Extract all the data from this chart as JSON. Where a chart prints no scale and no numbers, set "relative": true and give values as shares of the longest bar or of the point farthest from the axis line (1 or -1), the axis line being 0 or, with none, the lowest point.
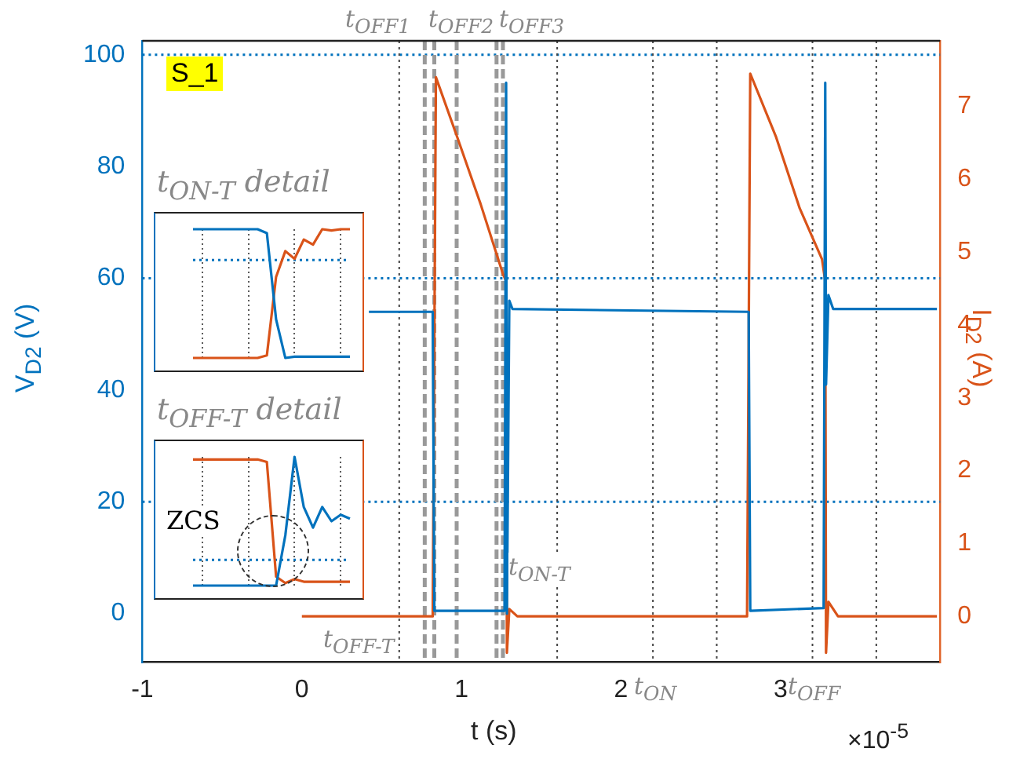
{
  "chart_data": [
    {
      "type": "line",
      "xlabel": "t (s)",
      "ylabel": "V$_{D2}$ (V)",
      "y2label": "I$_{D2}$ (A)",
      "legend": false,
      "grid": false,
      "marker": "none",
      "line_style": "solid",
      "xlim": [
        -1,
        4
      ],
      "xticks": [
        -1,
        0,
        1,
        2,
        3
      ],
      "ylim": [
        -8.7,
        102.5
      ],
      "yticks": [
        0,
        20,
        40,
        60,
        80,
        100
      ],
      "y2lim": [
        -0.63,
        7.9
      ],
      "y2ticks": [
        0,
        1,
        2,
        3,
        4,
        5,
        6,
        7
      ],
      "series": [
        {
          "color": "#0072bd",
          "x": [
            0.42,
            0.82,
            0.83,
            1.27,
            1.28,
            1.285,
            1.3,
            1.32,
            2.8,
            2.81,
            3.27,
            3.28,
            3.285,
            3.3,
            3.33,
            3.98
          ],
          "values": [
            54,
            54,
            0.5,
            0.5,
            95,
            0,
            56,
            54.5,
            54,
            0.5,
            1,
            95,
            41,
            57,
            54.5,
            54.5
          ]
        },
        {
          "color": "#d95319",
          "axis": "y2",
          "x": [
            0,
            0.82,
            0.84,
            0.975,
            1.12,
            1.26,
            1.28,
            1.285,
            1.3,
            1.35,
            2.79,
            2.81,
            2.97,
            3.12,
            3.26,
            3.28,
            3.285,
            3.3,
            3.36,
            3.98
          ],
          "values": [
            0,
            0,
            7.4,
            6.57,
            5.66,
            4.7,
            4.6,
            -0.5,
            0.1,
            0,
            0,
            7.45,
            6.59,
            5.6,
            4.9,
            4.6,
            -0.5,
            0.2,
            0,
            0
          ]
        }
      ],
      "ref_lines": [
        {
          "axis": "y",
          "value": 100,
          "color": "#0072bd",
          "line_style": "dotted"
        },
        {
          "axis": "y",
          "value": 60,
          "color": "#0072bd",
          "line_style": "dotted"
        },
        {
          "axis": "y",
          "value": 20,
          "color": "#0072bd",
          "line_style": "dotted"
        },
        {
          "axis": "x",
          "value": 0.61,
          "color": "#444444",
          "line_style": "dotted"
        },
        {
          "axis": "x",
          "value": 1.6,
          "color": "#444444",
          "line_style": "dotted"
        },
        {
          "axis": "x",
          "value": 2.2,
          "color": "#444444",
          "line_style": "dotted"
        },
        {
          "axis": "x",
          "value": 2.6,
          "color": "#444444",
          "line_style": "dotted"
        },
        {
          "axis": "x",
          "value": 3.2,
          "color": "#444444",
          "line_style": "dotted"
        },
        {
          "axis": "x",
          "value": 3.6,
          "color": "#444444",
          "line_style": "dotted"
        },
        {
          "axis": "x",
          "value": 0.77,
          "color": "#999999",
          "line_style": "dashed"
        },
        {
          "axis": "x",
          "value": 0.83,
          "color": "#999999",
          "line_style": "dashed"
        },
        {
          "axis": "x",
          "value": 0.97,
          "color": "#999999",
          "line_style": "dashed"
        },
        {
          "axis": "x",
          "value": 1.22,
          "color": "#999999",
          "line_style": "dashed"
        },
        {
          "axis": "x",
          "value": 1.26,
          "color": "#999999",
          "line_style": "dashed"
        }
      ],
      "annotations": [
        "S_1",
        "t$_{OFF1}$",
        "t$_{OFF2}$",
        "t$_{OFF3}$",
        "t$_{ON-T}$",
        "t$_{OFF-T}$",
        "t$_{ON}$",
        "t$_{OFF}$",
        "×10$^{-5}$"
      ]
    },
    {
      "type": "line",
      "title": "t$_{ON-T}$ detail",
      "relative": true,
      "legend": false,
      "grid": true,
      "marker": "none",
      "tick_labels": false,
      "categories": [
        null,
        null,
        null,
        null,
        null,
        null,
        null,
        null,
        null,
        null,
        null,
        null,
        null,
        null,
        null,
        null,
        null,
        null
      ],
      "series": [
        {
          "color": "#0072bd",
          "values": [
            1,
            1,
            1,
            1,
            1,
            1,
            1,
            1,
            0.97,
            0.3,
            0,
            0.01,
            0.01,
            0.01,
            0.01,
            0.01,
            0.01,
            0.01
          ]
        },
        {
          "color": "#d95319",
          "values": [
            0,
            0,
            0,
            0,
            0,
            0,
            0,
            0,
            0.02,
            0.63,
            0.83,
            0.77,
            0.92,
            0.88,
            1,
            0.99,
            1,
            1
          ]
        }
      ],
      "ref_lines": [
        {
          "axis": "y",
          "value": 0.76,
          "color": "#0072bd",
          "line_style": "dotted"
        }
      ]
    },
    {
      "type": "line",
      "title": "t$_{OFF-T}$ detail",
      "relative": true,
      "legend": false,
      "grid": true,
      "marker": "none",
      "tick_labels": false,
      "categories": [
        null,
        null,
        null,
        null,
        null,
        null,
        null,
        null,
        null,
        null,
        null,
        null,
        null,
        null,
        null,
        null,
        null,
        null
      ],
      "series": [
        {
          "color": "#0072bd",
          "values": [
            0,
            0,
            0,
            0,
            0,
            0,
            0,
            0,
            0,
            0,
            0.39,
            1,
            0.61,
            0.45,
            0.61,
            0.5,
            0.55,
            0.52
          ]
        },
        {
          "color": "#d95319",
          "values": [
            0.98,
            0.98,
            0.98,
            0.98,
            0.98,
            0.98,
            0.98,
            0.98,
            0.96,
            0.07,
            0.02,
            0.05,
            0.03,
            0.03,
            0.03,
            0.03,
            0.03,
            0.03
          ]
        }
      ],
      "ref_lines": [
        {
          "axis": "y",
          "value": 0.2,
          "color": "#0072bd",
          "line_style": "dotted"
        }
      ],
      "annotations": [
        "ZCS"
      ]
    }
  ]
}
